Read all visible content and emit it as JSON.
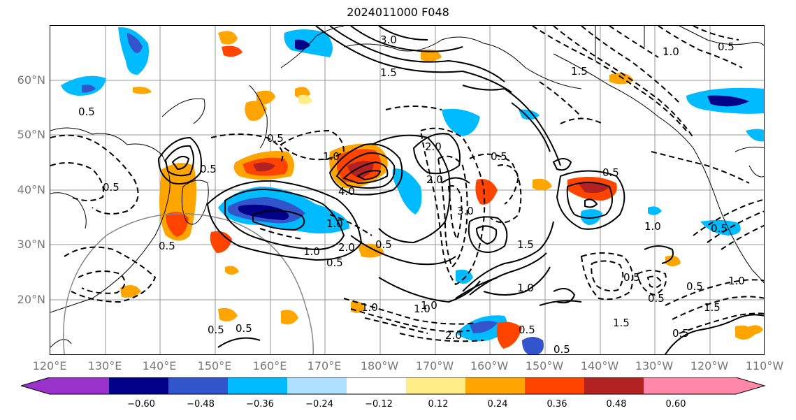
{
  "title": "2024011000 F048",
  "latitude_labels": [
    "60°N",
    "50°N",
    "40°N",
    "30°N",
    "20°N"
  ],
  "longitude_labels": [
    "120°E",
    "130°E",
    "140°E",
    "150°E",
    "160°E",
    "170°E",
    "180°W",
    "170°W",
    "160°W",
    "150°W",
    "140°W",
    "130°W",
    "120°W",
    "110°W"
  ],
  "colorbar": {
    "ticks": [
      "−0.60",
      "−0.48",
      "−0.36",
      "−0.24",
      "−0.12",
      "0.12",
      "0.24",
      "0.36",
      "0.48",
      "0.60"
    ],
    "colors": [
      "#9933cc",
      "#000088",
      "#3355cc",
      "#00bbff",
      "#b0e0ff",
      "#ffffff",
      "#ffee88",
      "#ffa500",
      "#ff4400",
      "#b22222",
      "#ff88aa"
    ]
  },
  "contour_labels": [
    "3.0",
    "1.5",
    "1.0",
    "0.5",
    "0.5",
    "0.5",
    "0.5",
    "1.0",
    "4.0",
    "2.0",
    "3.0",
    "1.0",
    "0.5",
    "1.5",
    "2.0",
    "1.0",
    "0.5",
    "0.5",
    "1.0",
    "0.5",
    "1.0",
    "1.5",
    "0.5",
    "0.5",
    "1.0",
    "1.5",
    "0.5",
    "0.5",
    "2.0",
    "0.5",
    "1.0",
    "0.5",
    "0.5",
    "1.5",
    "1.0",
    "0.5",
    "0.5",
    "0.5",
    "0.5",
    "1.0",
    "2.0"
  ]
}
